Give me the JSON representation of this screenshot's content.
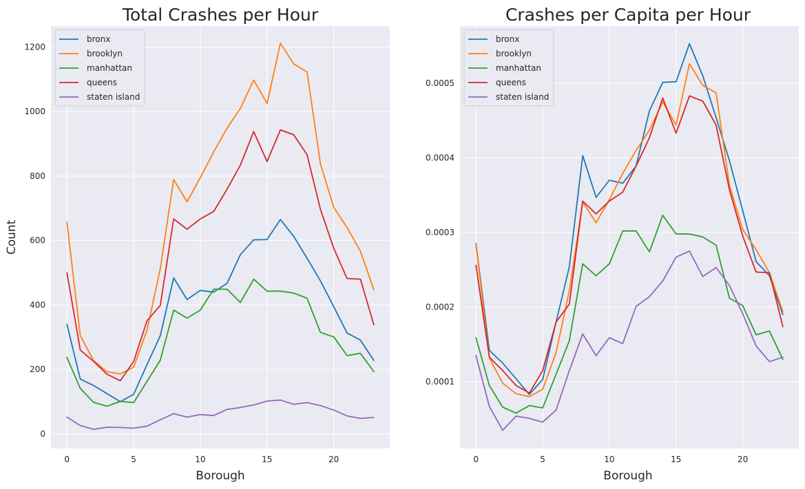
{
  "colors": {
    "bronx": "#1f77b4",
    "brooklyn": "#ff7f0e",
    "manhattan": "#2ca02c",
    "queens": "#d62728",
    "staten island": "#9467bd"
  },
  "chart_data": [
    {
      "type": "line",
      "title": "Total Crashes per Hour",
      "xlabel": "Borough",
      "ylabel": "Count",
      "x": [
        0,
        1,
        2,
        3,
        4,
        5,
        6,
        7,
        8,
        9,
        10,
        11,
        12,
        13,
        14,
        15,
        16,
        17,
        18,
        19,
        20,
        21,
        22,
        23
      ],
      "xlim": [
        -1.2,
        24.2
      ],
      "ylim": [
        -45,
        1265
      ],
      "xticks": [
        0,
        5,
        10,
        15,
        20
      ],
      "xtick_labels": [
        "0",
        "5",
        "10",
        "15",
        "20"
      ],
      "yticks": [
        0,
        200,
        400,
        600,
        800,
        1000,
        1200
      ],
      "ytick_labels": [
        "0",
        "200",
        "400",
        "600",
        "800",
        "1000",
        "1200"
      ],
      "grid": true,
      "legend": "upper-left",
      "series": [
        {
          "name": "bronx",
          "values": [
            340,
            170,
            150,
            125,
            100,
            123,
            215,
            305,
            484,
            417,
            445,
            440,
            467,
            556,
            602,
            603,
            665,
            613,
            545,
            475,
            395,
            313,
            291,
            228
          ]
        },
        {
          "name": "brooklyn",
          "values": [
            657,
            305,
            227,
            193,
            186,
            207,
            322,
            513,
            789,
            720,
            795,
            875,
            948,
            1010,
            1098,
            1025,
            1212,
            1148,
            1123,
            838,
            703,
            640,
            567,
            448
          ]
        },
        {
          "name": "manhattan",
          "values": [
            237,
            141,
            98,
            86,
            101,
            97,
            163,
            229,
            384,
            359,
            384,
            449,
            449,
            408,
            480,
            443,
            443,
            437,
            421,
            315,
            301,
            243,
            250,
            193
          ]
        },
        {
          "name": "queens",
          "values": [
            500,
            260,
            225,
            185,
            165,
            225,
            351,
            399,
            667,
            635,
            667,
            690,
            759,
            834,
            938,
            845,
            943,
            928,
            866,
            697,
            576,
            482,
            480,
            339
          ]
        },
        {
          "name": "staten island",
          "values": [
            52,
            26,
            14,
            21,
            20,
            18,
            24,
            44,
            63,
            52,
            60,
            57,
            76,
            82,
            90,
            102,
            105,
            92,
            97,
            88,
            74,
            56,
            48,
            51
          ]
        }
      ]
    },
    {
      "type": "line",
      "title": "Crashes per Capita per Hour",
      "xlabel": "Borough",
      "ylabel": "",
      "x": [
        0,
        1,
        2,
        3,
        4,
        5,
        6,
        7,
        8,
        9,
        10,
        11,
        12,
        13,
        14,
        15,
        16,
        17,
        18,
        19,
        20,
        21,
        22,
        23
      ],
      "xlim": [
        -1.2,
        24.2
      ],
      "ylim": [
        1.07e-05,
        0.0005764
      ],
      "xticks": [
        0,
        5,
        10,
        15,
        20
      ],
      "xtick_labels": [
        "0",
        "5",
        "10",
        "15",
        "20"
      ],
      "yticks": [
        0.0001,
        0.0002,
        0.0003,
        0.0004,
        0.0005
      ],
      "ytick_labels": [
        "0.0001",
        "0.0002",
        "0.0003",
        "0.0004",
        "0.0005"
      ],
      "grid": true,
      "legend": "upper-left",
      "series": [
        {
          "name": "bronx",
          "values": [
            0.000285,
            0.000142,
            0.000125,
            0.000104,
            8.3e-05,
            0.000103,
            0.00018,
            0.000254,
            0.000403,
            0.000347,
            0.00037,
            0.000366,
            0.000389,
            0.000463,
            0.000501,
            0.000502,
            0.000553,
            0.00051,
            0.000454,
            0.000396,
            0.000329,
            0.000261,
            0.000242,
            0.00019
          ]
        },
        {
          "name": "brooklyn",
          "values": [
            0.000284,
            0.000132,
            9.8e-05,
            8.4e-05,
            8e-05,
            9e-05,
            0.000139,
            0.000222,
            0.000341,
            0.000313,
            0.000344,
            0.000379,
            0.00041,
            0.000437,
            0.000475,
            0.000444,
            0.000526,
            0.000497,
            0.000487,
            0.000363,
            0.000304,
            0.000277,
            0.000246,
            0.000194
          ]
        },
        {
          "name": "manhattan",
          "values": [
            0.000159,
            9.5e-05,
            6.6e-05,
            5.8e-05,
            6.8e-05,
            6.5e-05,
            0.00011,
            0.000155,
            0.000258,
            0.000242,
            0.000258,
            0.000302,
            0.000302,
            0.000274,
            0.000323,
            0.000298,
            0.000298,
            0.000294,
            0.000283,
            0.000212,
            0.000202,
            0.000163,
            0.000168,
            0.00013
          ]
        },
        {
          "name": "queens",
          "values": [
            0.000256,
            0.000133,
            0.000115,
            9.5e-05,
            8.5e-05,
            0.000115,
            0.00018,
            0.000204,
            0.000342,
            0.000325,
            0.000342,
            0.000354,
            0.000389,
            0.000427,
            0.00048,
            0.000433,
            0.000483,
            0.000476,
            0.000444,
            0.000357,
            0.000295,
            0.000247,
            0.000246,
            0.000174
          ]
        },
        {
          "name": "staten island",
          "values": [
            0.000135,
            6.7e-05,
            3.5e-05,
            5.4e-05,
            5.1e-05,
            4.6e-05,
            6.2e-05,
            0.000115,
            0.000164,
            0.000135,
            0.000159,
            0.000151,
            0.000201,
            0.000214,
            0.000235,
            0.000267,
            0.000275,
            0.000241,
            0.000253,
            0.000229,
            0.000191,
            0.000148,
            0.000127,
            0.000133
          ]
        }
      ]
    }
  ]
}
